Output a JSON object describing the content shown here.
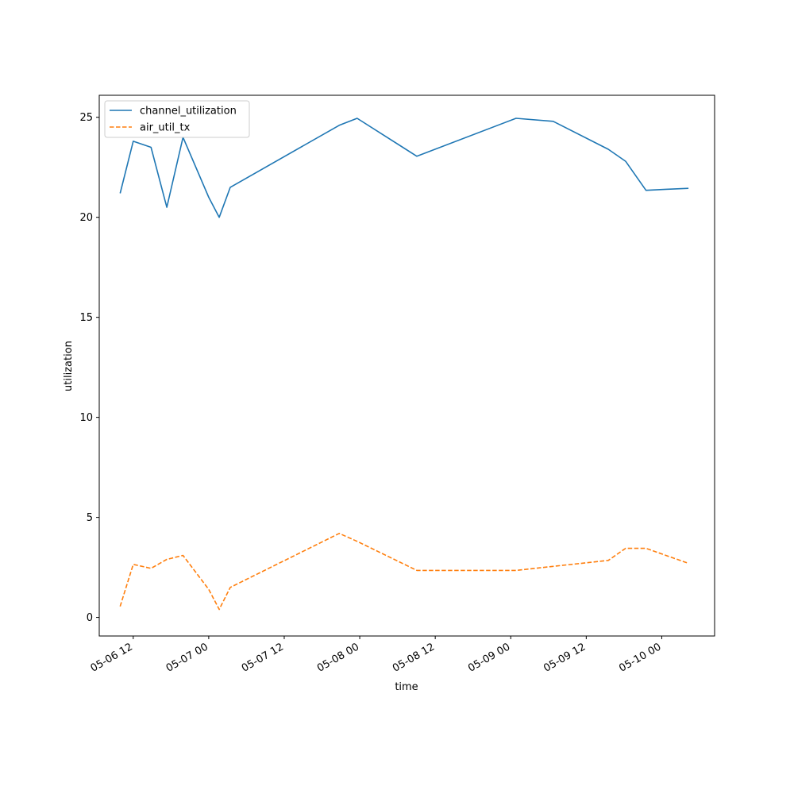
{
  "chart_data": {
    "type": "line",
    "title": "",
    "xlabel": "time",
    "ylabel": "utilization",
    "x_ticks": [
      "05-06 12",
      "05-07 00",
      "05-07 12",
      "05-08 00",
      "05-08 12",
      "05-09 00",
      "05-09 12",
      "05-10 00"
    ],
    "x_range": [
      "05-06 06:36",
      "05-10 08:24"
    ],
    "y_ticks": [
      0,
      5,
      10,
      15,
      20,
      25
    ],
    "ylim": [
      -0.93,
      26.1
    ],
    "grid": false,
    "legend_position": "upper left",
    "series": [
      {
        "name": "channel_utilization",
        "color": "#1f77b4",
        "style": "solid",
        "points": [
          [
            "05-06 09:55",
            21.2
          ],
          [
            "05-06 12:00",
            23.8
          ],
          [
            "05-06 14:50",
            23.5
          ],
          [
            "05-06 17:20",
            20.5
          ],
          [
            "05-06 19:55",
            24.0
          ],
          [
            "05-07 00:00",
            21.0
          ],
          [
            "05-07 01:40",
            20.0
          ],
          [
            "05-07 03:25",
            21.5
          ],
          [
            "05-07 20:45",
            24.6
          ],
          [
            "05-07 23:35",
            24.95
          ],
          [
            "05-08 09:05",
            23.05
          ],
          [
            "05-09 00:50",
            24.95
          ],
          [
            "05-09 06:45",
            24.8
          ],
          [
            "05-09 15:30",
            23.4
          ],
          [
            "05-09 18:15",
            22.8
          ],
          [
            "05-09 21:30",
            21.35
          ],
          [
            "05-10 00:40",
            21.4
          ],
          [
            "05-10 04:15",
            21.45
          ]
        ]
      },
      {
        "name": "air_util_tx",
        "color": "#ff7f0e",
        "style": "dashed",
        "points": [
          [
            "05-06 09:55",
            0.55
          ],
          [
            "05-06 12:00",
            2.65
          ],
          [
            "05-06 14:50",
            2.45
          ],
          [
            "05-06 17:20",
            2.9
          ],
          [
            "05-06 19:55",
            3.1
          ],
          [
            "05-07 00:00",
            1.4
          ],
          [
            "05-07 01:40",
            0.4
          ],
          [
            "05-07 03:25",
            1.5
          ],
          [
            "05-07 20:45",
            4.2
          ],
          [
            "05-07 23:35",
            3.8
          ],
          [
            "05-08 09:05",
            2.35
          ],
          [
            "05-09 00:50",
            2.35
          ],
          [
            "05-09 06:45",
            2.55
          ],
          [
            "05-09 15:30",
            2.85
          ],
          [
            "05-09 18:15",
            3.45
          ],
          [
            "05-09 21:30",
            3.45
          ],
          [
            "05-10 00:40",
            3.1
          ],
          [
            "05-10 04:15",
            2.7
          ]
        ]
      }
    ]
  }
}
